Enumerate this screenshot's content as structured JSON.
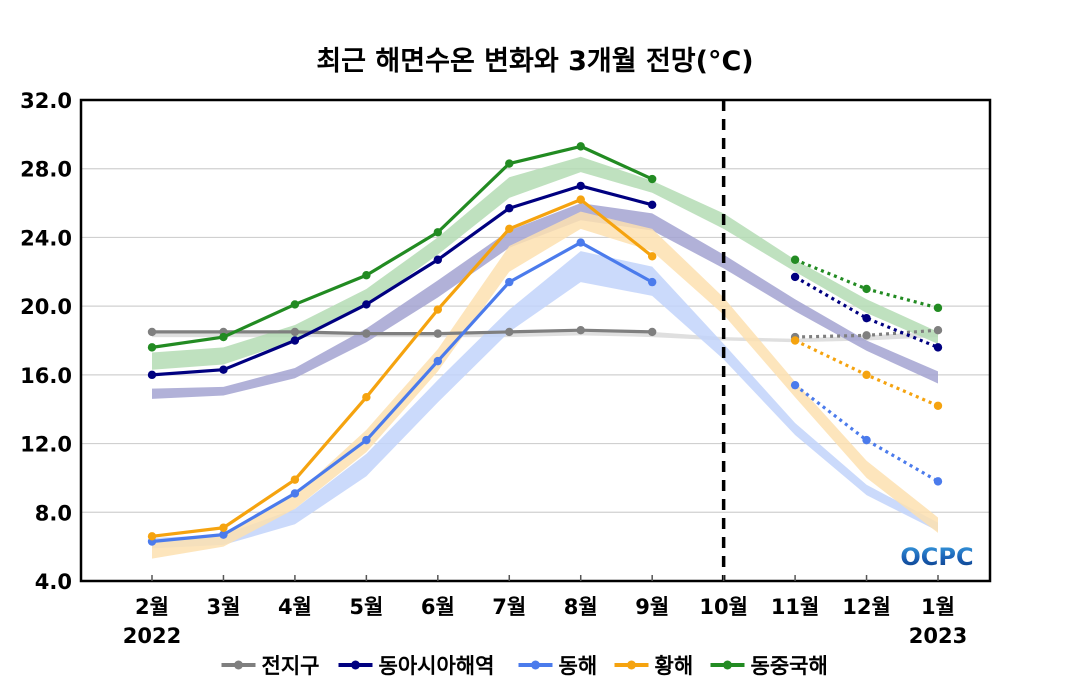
{
  "chart_data": {
    "type": "line",
    "title": "최근 해면수온 변화와 3개월 전망(°C)",
    "xlabel": "",
    "ylabel": "",
    "ylim": [
      4.0,
      32.0
    ],
    "yticks": [
      "4.0",
      "8.0",
      "12.0",
      "16.0",
      "20.0",
      "24.0",
      "28.0",
      "32.0"
    ],
    "ytick_values": [
      4,
      8,
      12,
      16,
      20,
      24,
      28,
      32
    ],
    "categories": [
      "2월",
      "3월",
      "4월",
      "5월",
      "6월",
      "7월",
      "8월",
      "9월",
      "10월",
      "11월",
      "12월",
      "1월"
    ],
    "year_labels": [
      {
        "index": 0,
        "label": "2022"
      },
      {
        "index": 11,
        "label": "2023"
      }
    ],
    "grid": true,
    "divider": {
      "after_index": 8,
      "style": "dashed",
      "label": "10월"
    },
    "logo": "OCPC",
    "legend_position": "bottom",
    "series": [
      {
        "name": "전지구",
        "color": "#7f7f7f",
        "band_color": "#d9d9d9",
        "observed": [
          18.5,
          18.5,
          18.5,
          18.4,
          18.4,
          18.5,
          18.6,
          18.5
        ],
        "forecast_start_index": 9,
        "forecast": [
          18.2,
          18.3,
          18.6
        ],
        "climatology_low": [
          18.2,
          18.2,
          18.2,
          18.2,
          18.2,
          18.2,
          18.3,
          18.2,
          18.0,
          17.9,
          18.0,
          18.2
        ],
        "climatology_high": [
          18.5,
          18.5,
          18.5,
          18.4,
          18.4,
          18.5,
          18.5,
          18.5,
          18.2,
          18.1,
          18.3,
          18.5
        ]
      },
      {
        "name": "동아시아해역",
        "color": "#000080",
        "band_color": "#a3a3d1",
        "observed": [
          16.0,
          16.3,
          18.0,
          20.1,
          22.7,
          25.7,
          27.0,
          25.9
        ],
        "forecast_start_index": 9,
        "forecast": [
          21.7,
          19.3,
          17.6
        ],
        "climatology_low": [
          14.6,
          14.8,
          15.8,
          17.9,
          20.5,
          23.4,
          25.0,
          24.4,
          22.2,
          19.7,
          17.4,
          15.5
        ],
        "climatology_high": [
          15.2,
          15.3,
          16.4,
          18.7,
          21.5,
          24.4,
          26.0,
          25.4,
          23.0,
          20.4,
          18.0,
          16.2
        ]
      },
      {
        "name": "동해",
        "color": "#4b7bec",
        "band_color": "#c2d3fa",
        "observed": [
          6.3,
          6.7,
          9.1,
          12.2,
          16.8,
          21.4,
          23.7,
          21.4
        ],
        "forecast_start_index": 9,
        "forecast": [
          15.4,
          12.2,
          9.8
        ],
        "climatology_low": [
          5.9,
          6.1,
          7.3,
          10.1,
          14.4,
          18.5,
          21.4,
          20.6,
          16.9,
          12.5,
          9.0,
          6.9
        ],
        "climatology_high": [
          6.5,
          6.7,
          8.2,
          11.4,
          15.7,
          19.8,
          23.2,
          22.3,
          17.8,
          13.2,
          9.6,
          7.4
        ]
      },
      {
        "name": "황해",
        "color": "#f5a30f",
        "band_color": "#fde0b0",
        "observed": [
          6.6,
          7.1,
          9.9,
          14.7,
          19.8,
          24.5,
          26.2,
          22.9
        ],
        "forecast_start_index": 9,
        "forecast": [
          18.0,
          16.0,
          14.2
        ],
        "climatology_low": [
          5.3,
          6.0,
          8.2,
          11.5,
          16.2,
          22.0,
          24.5,
          23.2,
          19.5,
          14.7,
          10.0,
          6.8
        ],
        "climatology_high": [
          6.2,
          6.8,
          9.0,
          12.8,
          17.5,
          23.5,
          25.5,
          24.5,
          20.5,
          15.6,
          11.0,
          7.7
        ]
      },
      {
        "name": "동중국해",
        "color": "#228b22",
        "band_color": "#b4dcb4",
        "observed": [
          17.6,
          18.2,
          20.1,
          21.8,
          24.3,
          28.3,
          29.3,
          27.4
        ],
        "forecast_start_index": 9,
        "forecast": [
          22.7,
          21.0,
          19.9
        ],
        "climatology_low": [
          16.3,
          16.6,
          18.0,
          20.0,
          23.0,
          26.3,
          27.8,
          26.6,
          24.5,
          22.0,
          19.6,
          17.8
        ],
        "climatology_high": [
          17.3,
          17.6,
          18.9,
          21.0,
          24.0,
          27.5,
          28.7,
          27.3,
          25.4,
          22.7,
          20.4,
          18.5
        ]
      }
    ]
  }
}
